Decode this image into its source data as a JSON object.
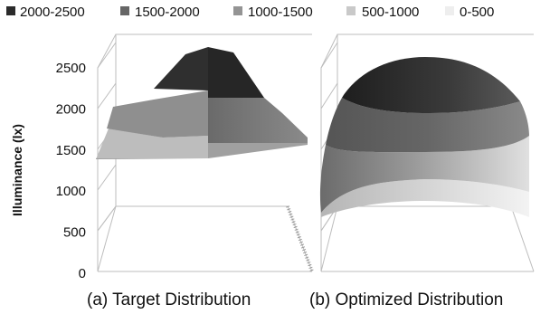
{
  "chart_data": {
    "type": "surface",
    "ylabel": "Illuminance (lx)",
    "ylim": [
      0,
      2500
    ],
    "y_ticks": [
      "0",
      "500",
      "1000",
      "1500",
      "2000",
      "2500"
    ],
    "legend": [
      {
        "label": "2000-2500",
        "color": "#2b2b2b",
        "range": [
          2000,
          2500
        ]
      },
      {
        "label": "1500-2000",
        "color": "#666666",
        "range": [
          1500,
          2000
        ]
      },
      {
        "label": "1000-1500",
        "color": "#949494",
        "range": [
          1000,
          1500
        ]
      },
      {
        "label": "500-1000",
        "color": "#c9c9c9",
        "range": [
          500,
          1000
        ]
      },
      {
        "label": "0-500",
        "color": "#eeeeee",
        "range": [
          0,
          500
        ]
      }
    ],
    "legend_position": "top",
    "panels": [
      {
        "caption": "(a) Target Distribution",
        "peak": 2500,
        "edge": 1500,
        "shape": "flat-topped plateau"
      },
      {
        "caption": "(b) Optimized Distribution",
        "peak": 2500,
        "edge": 700,
        "shape": "smooth dome"
      }
    ]
  }
}
